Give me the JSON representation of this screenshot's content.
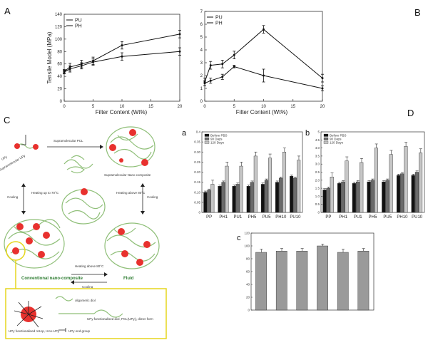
{
  "panels": {
    "A": "A",
    "B": "B",
    "C": "C",
    "D": "D",
    "a": "a",
    "b": "b",
    "c": "c"
  },
  "chart_data": [
    {
      "id": "A",
      "type": "line",
      "ylabel": "Tensile Model (MPa)",
      "xlabel": "Filter Content (Wt%)",
      "xlim": [
        0,
        20
      ],
      "ylim": [
        0,
        140
      ],
      "xticks": [
        "0",
        "5",
        "10",
        "15",
        "20"
      ],
      "yticks": [
        "0",
        "20",
        "40",
        "60",
        "80",
        "100",
        "120",
        "140"
      ],
      "legend": [
        "PU",
        "PH"
      ],
      "legend_position": "top-left",
      "series": [
        {
          "name": "PU",
          "x": [
            0,
            1,
            3,
            5,
            10,
            20
          ],
          "y": [
            48,
            55,
            60,
            65,
            90,
            108
          ],
          "err": [
            3,
            6,
            6,
            6,
            6,
            6
          ]
        },
        {
          "name": "PH",
          "x": [
            0,
            1,
            3,
            5,
            10,
            20
          ],
          "y": [
            47,
            52,
            57,
            63,
            72,
            80
          ],
          "err": [
            3,
            5,
            5,
            5,
            6,
            6
          ]
        }
      ]
    },
    {
      "id": "B",
      "type": "line",
      "ylabel": "",
      "xlabel": "Filter Content (Wt%)",
      "xlim": [
        0,
        20
      ],
      "ylim": [
        0,
        7
      ],
      "xticks": [
        "0",
        "5",
        "10",
        "15",
        "20"
      ],
      "yticks": [
        "0",
        "1",
        "2",
        "3",
        "4",
        "5",
        "6",
        "7"
      ],
      "legend": [
        "PU",
        "PH"
      ],
      "legend_position": "top-left",
      "series": [
        {
          "name": "PU",
          "x": [
            0,
            1,
            3,
            5,
            10,
            20
          ],
          "y": [
            1.5,
            2.8,
            2.9,
            3.6,
            5.6,
            1.8
          ],
          "err": [
            0.3,
            0.3,
            0.3,
            0.3,
            0.3,
            0.3
          ]
        },
        {
          "name": "PH",
          "x": [
            0,
            1,
            3,
            5,
            10,
            20
          ],
          "y": [
            1.4,
            1.6,
            1.9,
            2.7,
            2.0,
            1.0
          ],
          "err": [
            0.2,
            0.2,
            0.2,
            0.1,
            0.5,
            0.2
          ]
        }
      ]
    },
    {
      "id": "a",
      "type": "bar",
      "categories": [
        "PP",
        "PH1",
        "PU1",
        "PH5",
        "PU5",
        "PH10",
        "PU10"
      ],
      "ylim": [
        0,
        0.4
      ],
      "yticks": [
        "0",
        "0.05",
        "0.10",
        "0.15",
        "0.20",
        "0.25",
        "0.30",
        "0.35",
        "0.4"
      ],
      "legend": [
        "Before PBS",
        "90 Days",
        "120 Days"
      ],
      "series": [
        {
          "name": "Before PBS",
          "values": [
            0.1,
            0.13,
            0.13,
            0.13,
            0.14,
            0.15,
            0.18
          ]
        },
        {
          "name": "90 Days",
          "values": [
            0.11,
            0.15,
            0.14,
            0.15,
            0.16,
            0.17,
            0.17
          ]
        },
        {
          "name": "120 Days",
          "values": [
            0.14,
            0.23,
            0.23,
            0.28,
            0.27,
            0.3,
            0.26
          ]
        }
      ]
    },
    {
      "id": "b",
      "type": "bar",
      "categories": [
        "PP",
        "PH1",
        "PU1",
        "PH5",
        "PU5",
        "PH10",
        "PU10"
      ],
      "ylim": [
        0,
        5
      ],
      "yticks": [
        "0",
        "0.5",
        "1.0",
        "1.5",
        "2.0",
        "2.5",
        "3.0",
        "3.5",
        "4.0",
        "4.5",
        "5"
      ],
      "legend": [
        "Before PBS",
        "90 Days",
        "120 Days"
      ],
      "series": [
        {
          "name": "Before PBS",
          "values": [
            1.4,
            1.8,
            1.8,
            1.9,
            1.9,
            2.3,
            2.3
          ]
        },
        {
          "name": "90 Days",
          "values": [
            1.5,
            1.9,
            1.9,
            2.0,
            2.0,
            2.4,
            2.5
          ]
        },
        {
          "name": "120 Days",
          "values": [
            2.2,
            3.2,
            3.1,
            4.0,
            3.6,
            4.1,
            3.7
          ]
        }
      ]
    },
    {
      "id": "c",
      "type": "bar",
      "categories": [
        "",
        "",
        "",
        "",
        "",
        ""
      ],
      "ylim": [
        0,
        120
      ],
      "yticks": [
        "0",
        "20",
        "40",
        "60",
        "80",
        "100",
        "120"
      ],
      "series": [
        {
          "name": "",
          "values": [
            90,
            92,
            92,
            100,
            90,
            92
          ],
          "err": [
            5,
            4,
            4,
            3,
            5,
            4
          ]
        }
      ]
    }
  ],
  "schematic": {
    "labels": {
      "upy": "UPy",
      "supramolecular_upy": "Supramolecular UPy",
      "supramolecular_pcl": "Supramolecular PCL",
      "supramolecular_nano": "Supramolecular Nano composite",
      "cooling_left": "Cooling",
      "heating_left": "Heating up to 70°C",
      "heating_right": "Heating above 80°C",
      "cooling_right": "Cooling",
      "heating_bottom": "Heating above 80°C",
      "cooling_bottom": "Cooling",
      "conventional": "Conventional nano-composite",
      "fluid": "Fluid"
    },
    "legend": {
      "oligomeric": "oligomeric diol",
      "upy_diol": "UPy functionalised diol, PCL(UPy)₂ dimer form",
      "upy_nhap": "UPy functionalised nHAp, HAn-UPy",
      "upy_end": "UPy end group"
    },
    "colors": {
      "particle": "#e8312e",
      "strand": "#8fbf78",
      "green_text": "#2e7d32",
      "highlight": "#e5d61d"
    }
  }
}
